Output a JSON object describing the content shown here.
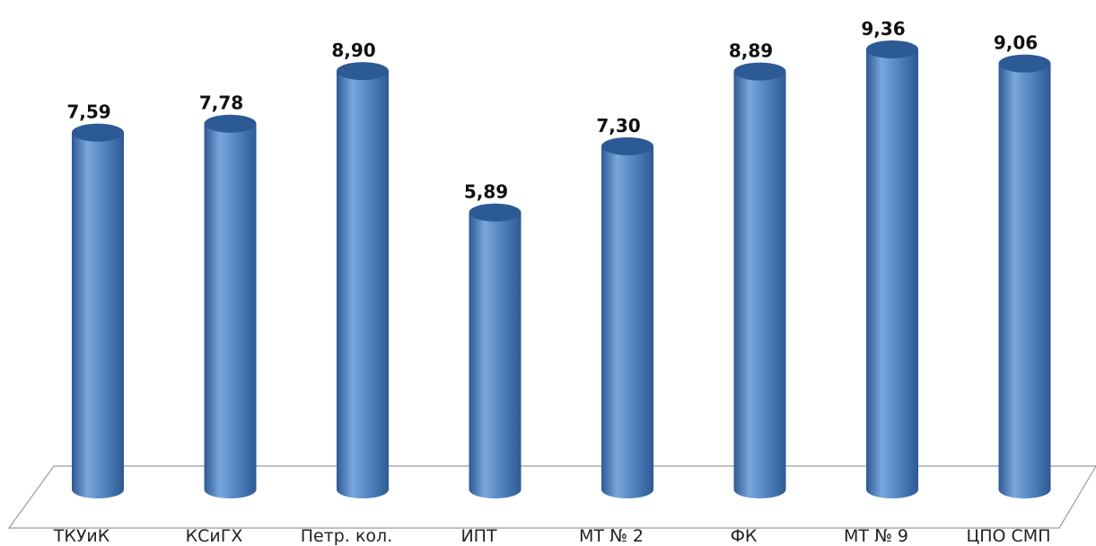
{
  "chart_data": {
    "type": "bar",
    "categories": [
      "ТКУиК",
      "КСиГХ",
      "Петр. кол.",
      "ИПТ",
      "МТ № 2",
      "ФК",
      "МТ № 9",
      "ЦПО СМП"
    ],
    "values": [
      7.59,
      7.78,
      8.9,
      5.89,
      7.3,
      8.89,
      9.36,
      9.06
    ],
    "value_labels": [
      "7,59",
      "7,78",
      "8,90",
      "5,89",
      "7,30",
      "8,89",
      "9,36",
      "9,06"
    ],
    "title": "",
    "xlabel": "",
    "ylabel": "",
    "ylim": [
      0,
      9.36
    ],
    "grid": false,
    "legend": "none",
    "style": "3d-cylinder",
    "colors": {
      "bar": "#4f81bd",
      "bar_dark": "#2c5a94",
      "bar_light": "#7aa6dc",
      "floor": "#9a9a9a"
    }
  }
}
